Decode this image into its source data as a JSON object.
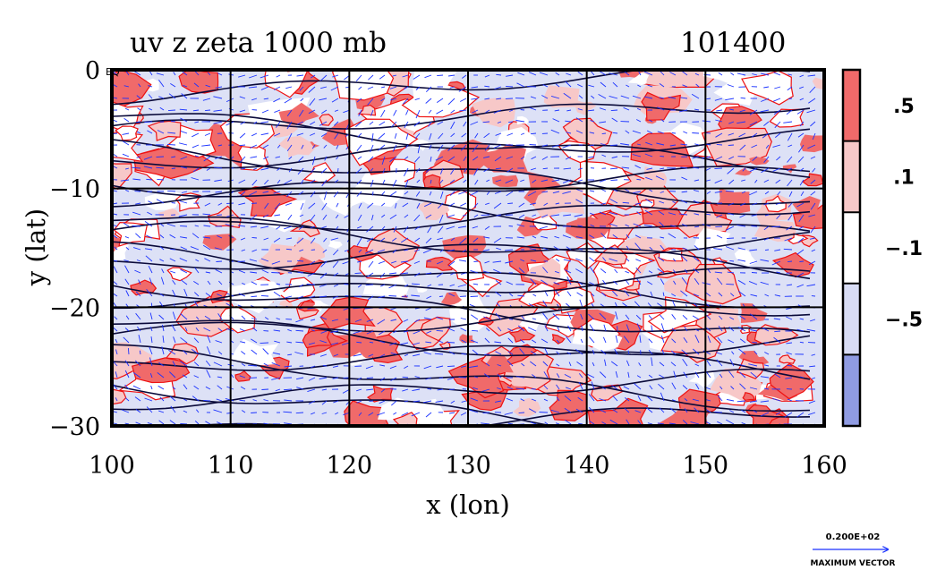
{
  "chart_data": {
    "type": "heatmap",
    "title": "uv z zeta 1000 mb",
    "time_label": "101400",
    "xlabel": "x (lon)",
    "ylabel": "y (lat)",
    "xlim": [
      100,
      160
    ],
    "ylim": [
      -30,
      0
    ],
    "x_ticks": [
      {
        "value": 100,
        "label": "100"
      },
      {
        "value": 110,
        "label": "110"
      },
      {
        "value": 120,
        "label": "120"
      },
      {
        "value": 130,
        "label": "130"
      },
      {
        "value": 140,
        "label": "140"
      },
      {
        "value": 150,
        "label": "150"
      },
      {
        "value": 160,
        "label": "160"
      }
    ],
    "y_ticks": [
      {
        "value": 0,
        "label": "0"
      },
      {
        "value": -10,
        "label": "−10"
      },
      {
        "value": -20,
        "label": "−20"
      },
      {
        "value": -30,
        "label": "−30"
      }
    ],
    "top_left_tick_fragment": "EQ",
    "grid": true,
    "gridlines_x": [
      110,
      120,
      130,
      140,
      150
    ],
    "gridlines_y": [
      -10,
      -20
    ],
    "colorbar": {
      "levels": [
        {
          "label": ".5",
          "color": "#f06a6a"
        },
        {
          "label": ".1",
          "color": "#f7c8c8"
        },
        {
          "label": "−.1",
          "color": "#ffffff"
        },
        {
          "label": "−.5",
          "color": "#d8dcf4"
        },
        {
          "label": "",
          "color": "#8f9be2"
        }
      ]
    },
    "series": [
      {
        "field": "zeta",
        "kind": "filled-contours"
      },
      {
        "field": "z",
        "kind": "contour-lines",
        "color": "#0a0a3a"
      },
      {
        "field": "uv",
        "kind": "wind-vectors",
        "color": "#1a32ff"
      }
    ],
    "vector_key": {
      "value": "0.200E+02",
      "label": "MAXIMUM VECTOR"
    }
  }
}
